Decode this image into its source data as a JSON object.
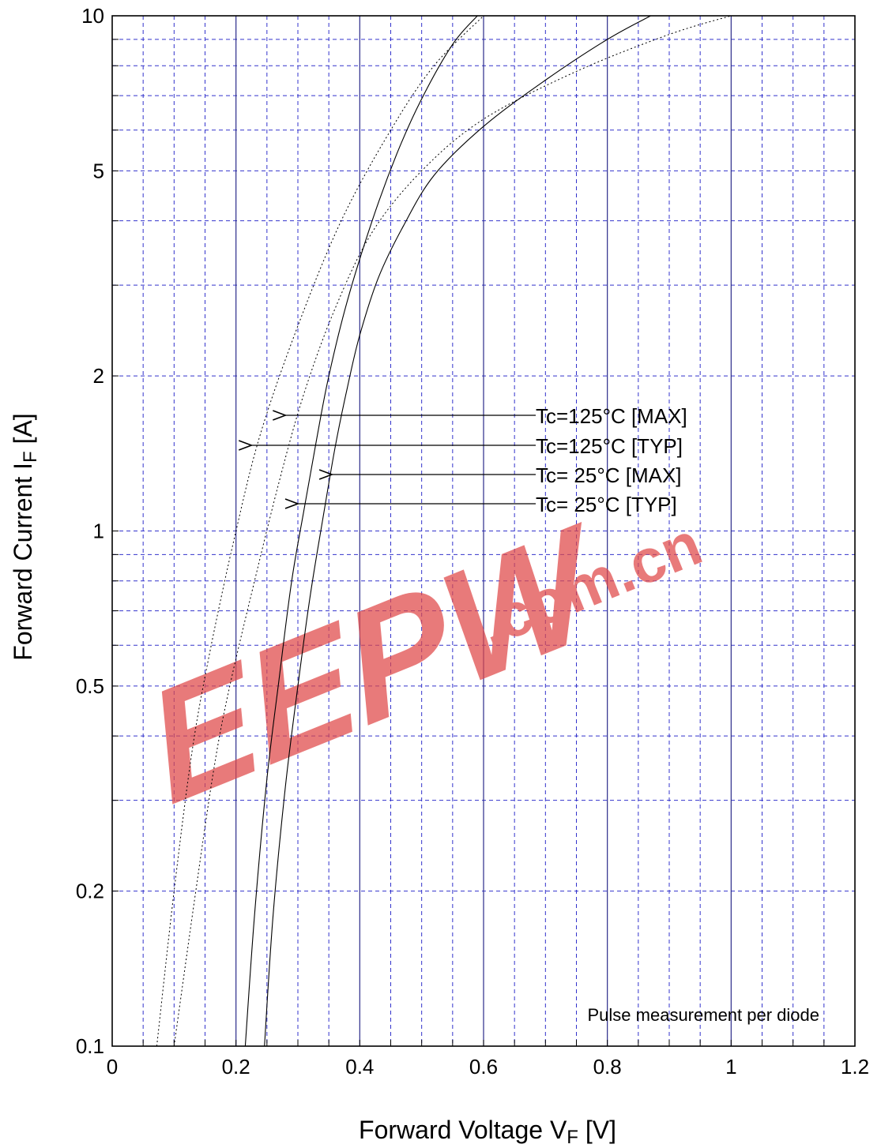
{
  "chart_data": {
    "type": "line",
    "title": "",
    "xlabel": "Forward Voltage  V",
    "xlabel_sub": "F",
    "xlabel_unit": "  [V]",
    "ylabel": "Forward Current  I",
    "ylabel_sub": "F",
    "ylabel_unit": "  [A]",
    "xlim": [
      0,
      1.2
    ],
    "ylim": [
      0.1,
      10
    ],
    "yscale": "log",
    "grid": true,
    "x_ticks": [
      0,
      0.2,
      0.4,
      0.6,
      0.8,
      1,
      1.2
    ],
    "x_tick_labels": [
      "0",
      "0.2",
      "0.4",
      "0.6",
      "0.8",
      "1",
      "1.2"
    ],
    "y_ticks": [
      0.1,
      0.2,
      0.5,
      1,
      2,
      5,
      10
    ],
    "y_tick_labels": [
      "0.1",
      "0.2",
      "0.5",
      "1",
      "2",
      "5",
      "10"
    ],
    "series": [
      {
        "name": "Tc=125°C [MAX]",
        "style": "dotted",
        "x": [
          0.1,
          0.135,
          0.165,
          0.19,
          0.23,
          0.27,
          0.31,
          0.36,
          0.42,
          0.5,
          0.6,
          0.75,
          0.9,
          1.0
        ],
        "y": [
          0.1,
          0.2,
          0.35,
          0.5,
          0.8,
          1.25,
          1.85,
          2.7,
          3.8,
          5.0,
          6.3,
          7.8,
          9.2,
          10
        ]
      },
      {
        "name": "Tc=125°C [TYP]",
        "style": "dotted",
        "x": [
          0.072,
          0.1,
          0.13,
          0.16,
          0.2,
          0.24,
          0.3,
          0.37,
          0.45,
          0.52,
          0.6
        ],
        "y": [
          0.1,
          0.2,
          0.38,
          0.6,
          1.0,
          1.55,
          2.5,
          4.0,
          6.0,
          8.0,
          10
        ]
      },
      {
        "name": "Tc=  25°C [MAX]",
        "style": "solid",
        "x": [
          0.246,
          0.26,
          0.28,
          0.3,
          0.32,
          0.34,
          0.36,
          0.38,
          0.4,
          0.43,
          0.47,
          0.52,
          0.6,
          0.7,
          0.8,
          0.87
        ],
        "y": [
          0.1,
          0.18,
          0.32,
          0.5,
          0.75,
          1.05,
          1.45,
          1.9,
          2.4,
          3.1,
          3.9,
          4.9,
          6.1,
          7.5,
          9.0,
          10
        ]
      },
      {
        "name": "Tc=  25°C [TYP]",
        "style": "solid",
        "x": [
          0.215,
          0.23,
          0.25,
          0.27,
          0.29,
          0.31,
          0.33,
          0.35,
          0.38,
          0.42,
          0.46,
          0.5,
          0.55,
          0.59
        ],
        "y": [
          0.1,
          0.18,
          0.33,
          0.52,
          0.8,
          1.1,
          1.5,
          2.0,
          2.8,
          4.0,
          5.4,
          6.9,
          8.8,
          10
        ]
      }
    ],
    "annotations": [
      {
        "text": "Tc=125°C [MAX]",
        "arrow_to": {
          "x": 0.28,
          "y": 1.6
        }
      },
      {
        "text": "Tc=125°C [TYP]",
        "arrow_to": {
          "x": 0.225,
          "y": 1.42
        }
      },
      {
        "text": "Tc=  25°C [MAX]",
        "arrow_to": {
          "x": 0.355,
          "y": 1.25
        }
      },
      {
        "text": "Tc=  25°C [TYP]",
        "arrow_to": {
          "x": 0.3,
          "y": 1.1
        }
      }
    ],
    "note": "Pulse measurement per diode"
  },
  "watermark": {
    "text": "EEPW",
    "sub": ".com.cn",
    "color": "#e04848"
  }
}
